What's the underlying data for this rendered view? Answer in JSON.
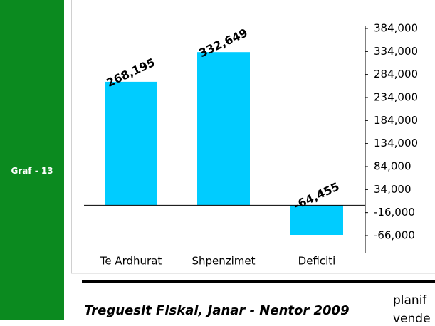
{
  "sidebar": {
    "label": "Graf - 13"
  },
  "chart_data": {
    "type": "bar",
    "categories": [
      "Te Ardhurat",
      "Shpenzimet",
      "Deficiti"
    ],
    "values": [
      268195,
      332649,
      -64455
    ],
    "value_labels": [
      "268,195",
      "332,649",
      "-64,455"
    ],
    "color": "#00ccff",
    "ylim": [
      -66000,
      384000
    ],
    "yticks": [
      {
        "value": 384000,
        "label": "384,000"
      },
      {
        "value": 334000,
        "label": "334,000"
      },
      {
        "value": 284000,
        "label": "284,000"
      },
      {
        "value": 234000,
        "label": "234,000"
      },
      {
        "value": 184000,
        "label": "184,000"
      },
      {
        "value": 134000,
        "label": "134,000"
      },
      {
        "value": 84000,
        "label": "84,000"
      },
      {
        "value": 34000,
        "label": "34,000"
      },
      {
        "value": -16000,
        "label": "-16,000"
      },
      {
        "value": -66000,
        "label": "-66,000"
      }
    ]
  },
  "caption": "Treguesit Fiskal, Janar - Nentor 2009",
  "side_text": [
    "planif",
    "vende"
  ]
}
